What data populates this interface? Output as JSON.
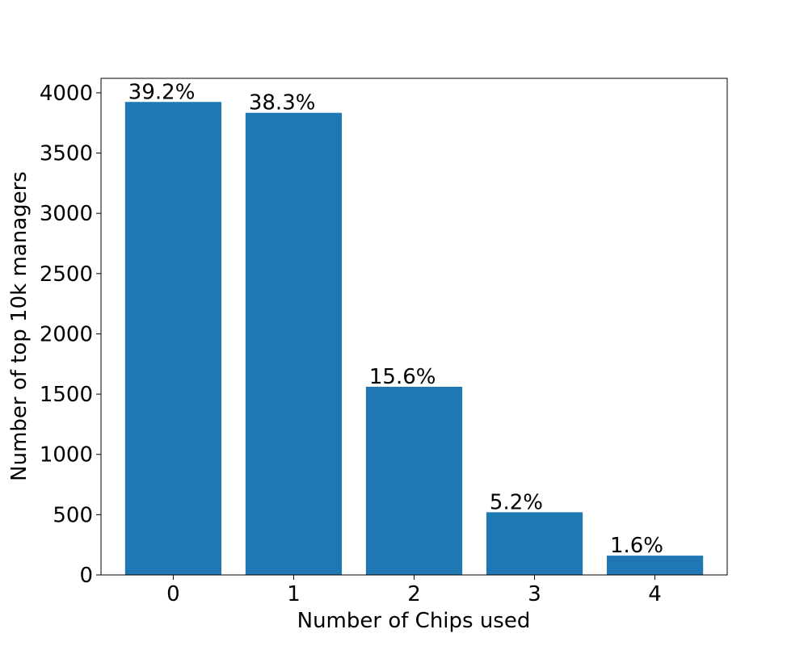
{
  "chart_data": {
    "type": "bar",
    "categories": [
      "0",
      "1",
      "2",
      "3",
      "4"
    ],
    "values": [
      3924,
      3834,
      1561,
      520,
      160
    ],
    "data_labels": [
      "39.2%",
      "38.3%",
      "15.6%",
      "5.2%",
      "1.6%"
    ],
    "xlabel": "Number of Chips used",
    "ylabel": "Number of top 10k managers",
    "ylim": [
      0,
      4120
    ],
    "yticks": [
      0,
      500,
      1000,
      1500,
      2000,
      2500,
      3000,
      3500,
      4000
    ],
    "grid": false,
    "bar_color": "#1f77b4"
  }
}
